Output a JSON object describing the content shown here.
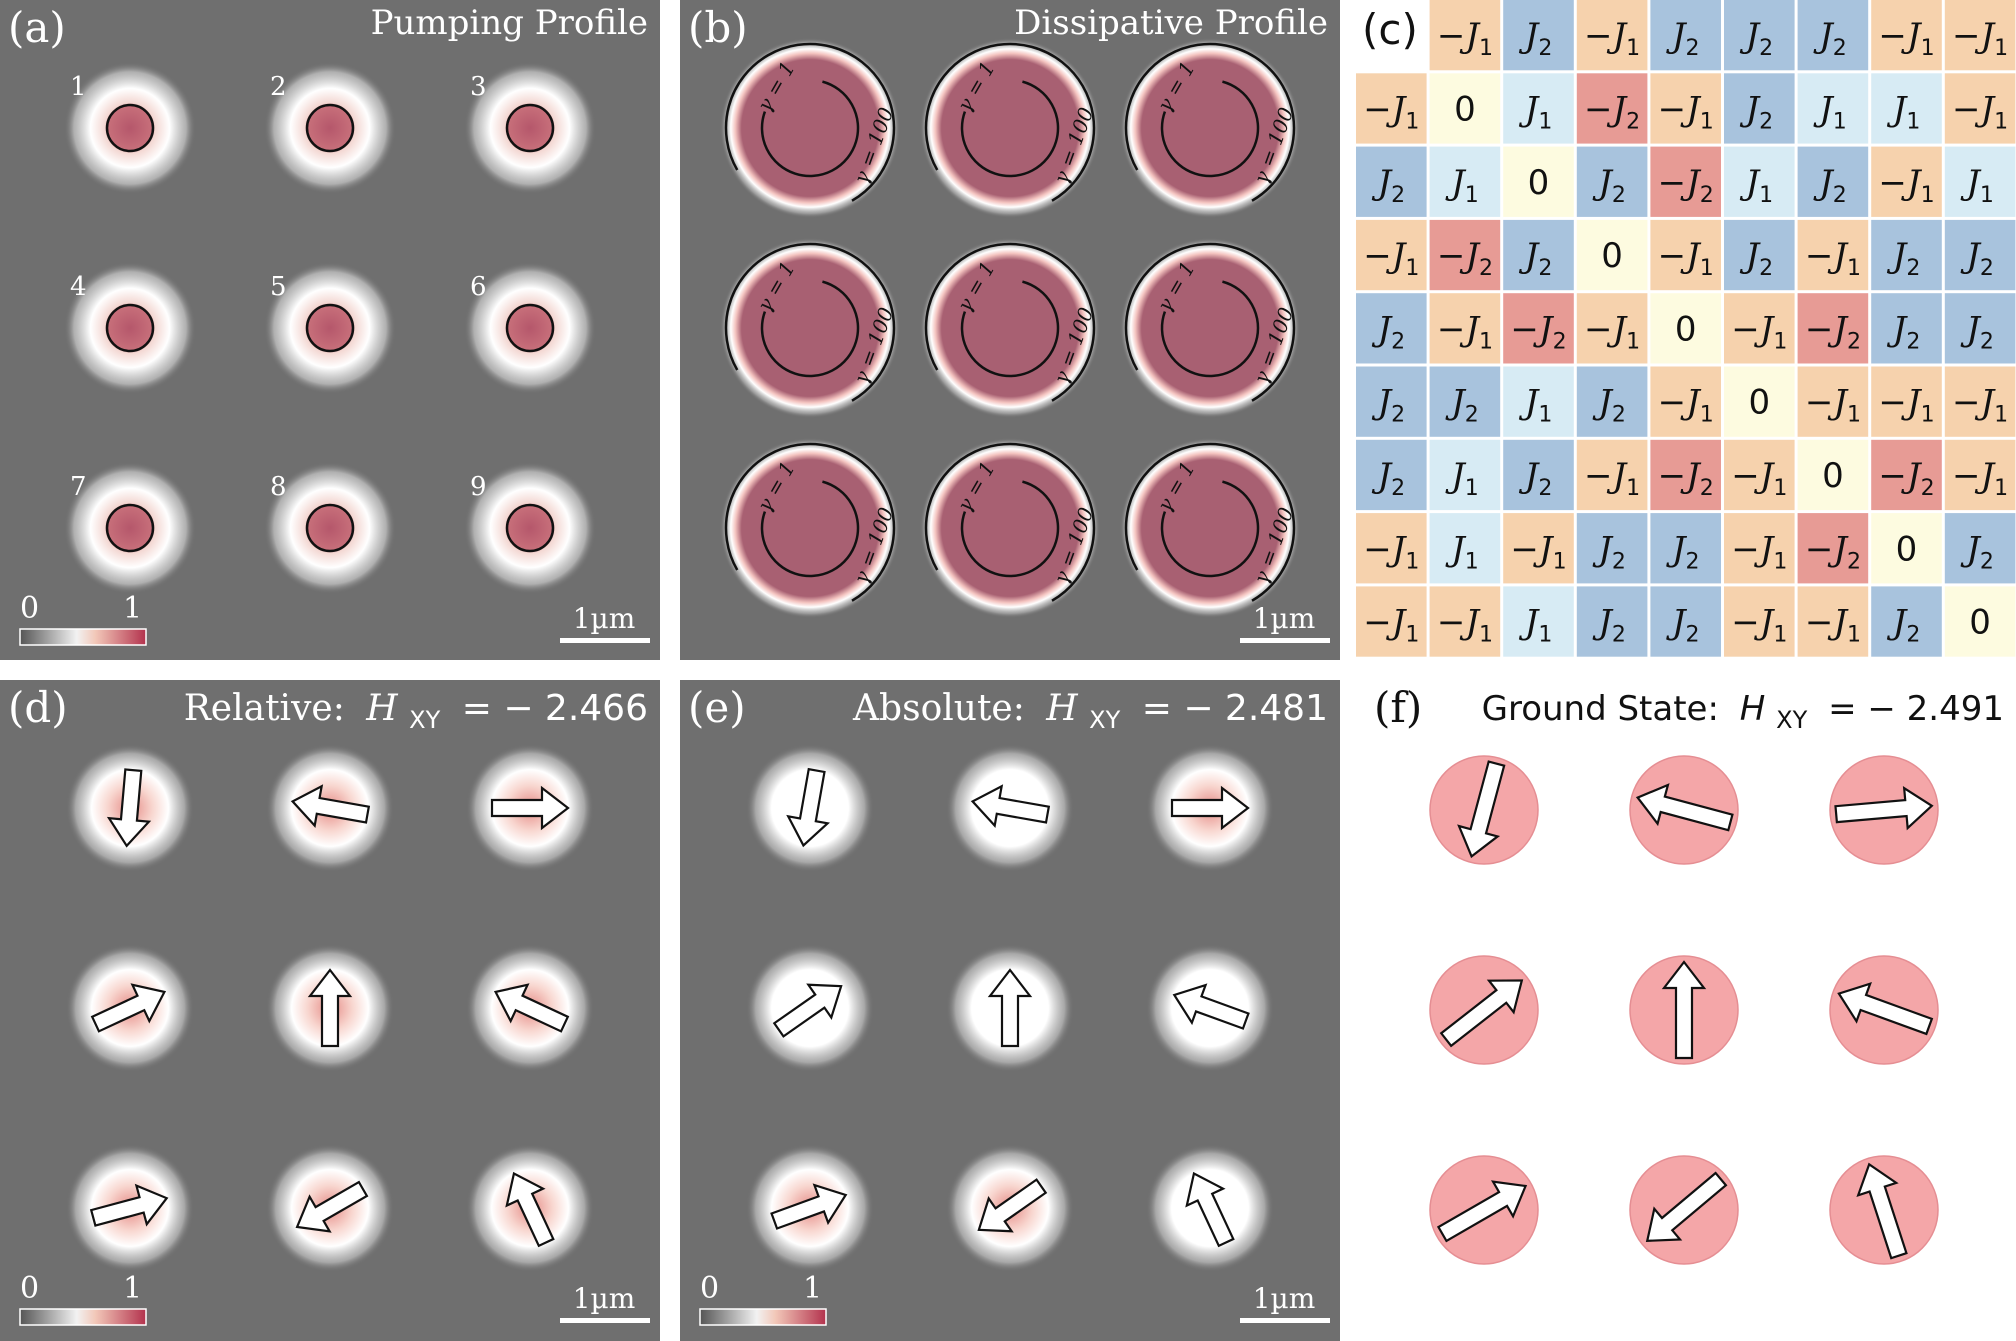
{
  "panels": {
    "a": {
      "label": "(a)",
      "title": "Pumping Profile",
      "scale_bar": "1µm",
      "colorbar": {
        "min": "0",
        "max": "1"
      },
      "site_numbers": [
        "1",
        "2",
        "3",
        "4",
        "5",
        "6",
        "7",
        "8",
        "9"
      ]
    },
    "b": {
      "label": "(b)",
      "title": "Dissipative Profile",
      "scale_bar": "1µm",
      "gamma_inner": "γ = 1",
      "gamma_outer": "γ = 100"
    },
    "c": {
      "label": "(c)",
      "matrix": [
        [
          "",
          "-J1",
          "J2",
          "-J1",
          "J2",
          "J2",
          "J2",
          "-J1",
          "-J1"
        ],
        [
          "-J1",
          "0",
          "J1",
          "-J2",
          "-J1",
          "J2",
          "J1",
          "J1",
          "-J1"
        ],
        [
          "J2",
          "J1",
          "0",
          "J2",
          "-J2",
          "J1",
          "J2",
          "-J1",
          "J1"
        ],
        [
          "-J1",
          "-J2",
          "J2",
          "0",
          "-J1",
          "J2",
          "-J1",
          "J2",
          "J2"
        ],
        [
          "J2",
          "-J1",
          "-J2",
          "-J1",
          "0",
          "-J1",
          "-J2",
          "J2",
          "J2"
        ],
        [
          "J2",
          "J2",
          "J1",
          "J2",
          "-J1",
          "0",
          "-J1",
          "-J1",
          "-J1"
        ],
        [
          "J2",
          "J1",
          "J2",
          "-J1",
          "-J2",
          "-J1",
          "0",
          "-J2",
          "-J1"
        ],
        [
          "-J1",
          "J1",
          "-J1",
          "J2",
          "J2",
          "-J1",
          "-J2",
          "0",
          "J2"
        ],
        [
          "-J1",
          "-J1",
          "J1",
          "J2",
          "J2",
          "-J1",
          "-J1",
          "J2",
          "0"
        ]
      ]
    },
    "d": {
      "label": "(d)",
      "title_prefix": "Relative:",
      "H_sym": "H",
      "H_sub": "XY",
      "value": "= − 2.466",
      "scale_bar": "1µm",
      "colorbar": {
        "min": "0",
        "max": "1"
      },
      "arrow_angles_deg": [
        -95,
        170,
        0,
        25,
        90,
        155,
        15,
        210,
        115
      ]
    },
    "e": {
      "label": "(e)",
      "title_prefix": "Absolute:",
      "H_sym": "H",
      "H_sub": "XY",
      "value": "= − 2.481",
      "scale_bar": "1µm",
      "colorbar": {
        "min": "0",
        "max": "1"
      },
      "arrow_angles_deg": [
        -100,
        170,
        0,
        35,
        90,
        160,
        20,
        215,
        115
      ]
    },
    "f": {
      "label": "(f)",
      "title_prefix": "Ground State:",
      "H_sym": "H",
      "H_sub": "XY",
      "value": "= − 2.491",
      "arrow_angles_deg": [
        -105,
        165,
        5,
        38,
        90,
        160,
        30,
        220,
        108
      ]
    }
  },
  "colors": {
    "panel_bg": "#6f6f6f",
    "spot": "#b85a6c",
    "J1_pos": "#d7ebf4",
    "J1_neg": "#f6d2ad",
    "J2_pos": "#a8c3dd",
    "J2_neg": "#e79b95",
    "zero": "#fdfbe0",
    "ground_disc": "#f4a6a8"
  }
}
